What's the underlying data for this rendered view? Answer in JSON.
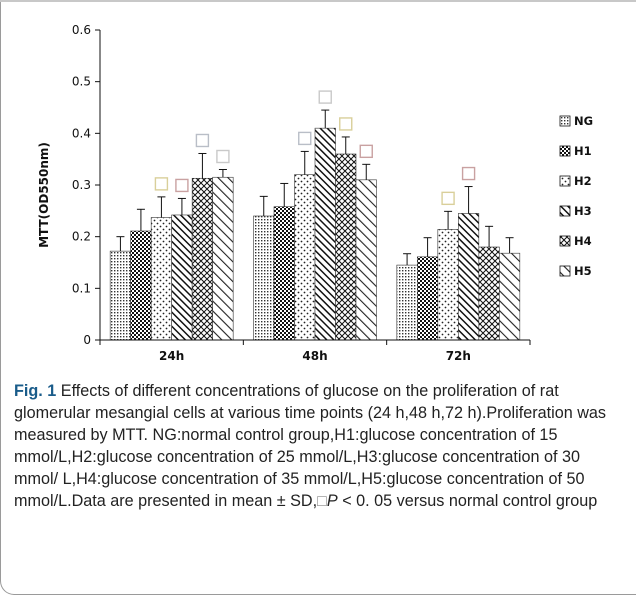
{
  "chart_data": {
    "type": "bar",
    "ylabel": "MTT(OD550nm)",
    "ylim": [
      0,
      0.6
    ],
    "yticks": [
      "0",
      "0.1",
      "0.2",
      "0.3",
      "0.4",
      "0.5",
      "0.6"
    ],
    "categories": [
      "24h",
      "48h",
      "72h"
    ],
    "legend_position": "right",
    "series": [
      {
        "name": "NG",
        "pattern": "dots-fine",
        "values": [
          0.172,
          0.24,
          0.145
        ],
        "errors": [
          0.028,
          0.038,
          0.022
        ],
        "significant": [
          false,
          false,
          false
        ]
      },
      {
        "name": "H1",
        "pattern": "checker",
        "values": [
          0.211,
          0.258,
          0.161
        ],
        "errors": [
          0.042,
          0.045,
          0.037
        ],
        "significant": [
          false,
          false,
          false
        ]
      },
      {
        "name": "H2",
        "pattern": "dots-sparse",
        "values": [
          0.237,
          0.32,
          0.214
        ],
        "errors": [
          0.04,
          0.045,
          0.035
        ],
        "significant": [
          true,
          true,
          true
        ]
      },
      {
        "name": "H3",
        "pattern": "diagonal",
        "values": [
          0.242,
          0.41,
          0.245
        ],
        "errors": [
          0.032,
          0.035,
          0.052
        ],
        "significant": [
          true,
          true,
          true
        ]
      },
      {
        "name": "H4",
        "pattern": "crosshatch",
        "values": [
          0.313,
          0.36,
          0.18
        ],
        "errors": [
          0.048,
          0.033,
          0.04
        ],
        "significant": [
          true,
          true,
          false
        ]
      },
      {
        "name": "H5",
        "pattern": "diagonal-light",
        "values": [
          0.315,
          0.31,
          0.168
        ],
        "errors": [
          0.015,
          0.03,
          0.03
        ],
        "significant": [
          true,
          true,
          false
        ]
      }
    ],
    "significance_color": "#c9a1a1",
    "significance_colors": [
      "#b9bec7",
      "#c9c9c9",
      "#d9cf9a",
      "#c9a1a1"
    ]
  },
  "caption": {
    "label": "Fig. 1",
    "text_before": " Effects of different concentrations of glucose on the proliferation of rat glomerular mesangial cells at various time points (24 h,48 h,72 h).Proliferation was measured by MTT. NG:normal control group,H1:glucose concentration of 15 mmol/L,H2:glucose concentration of 25 mmol/L,H3:glucose concentration of 30 mmol/ L,H4:glucose concentration of 35 mmol/L,H5:glucose concentration of 50 mmol/L.Data are presented in mean ± SD,",
    "symbol": "□",
    "p_letter": "P",
    "text_after": " < 0. 05 versus normal control group"
  }
}
